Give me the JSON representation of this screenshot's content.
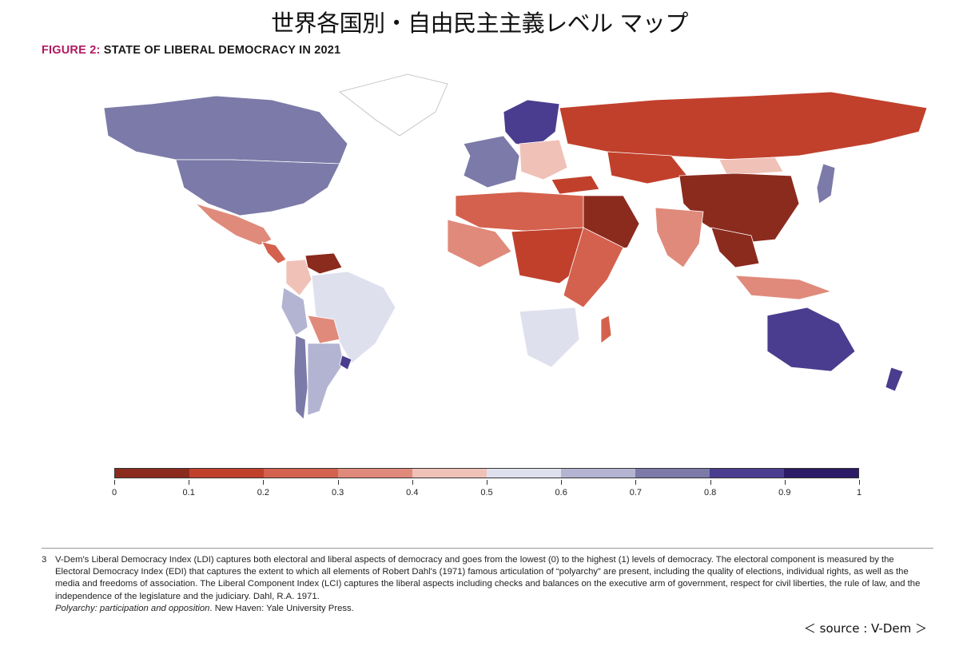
{
  "title_jp": "世界各国別・自由民主主義レベル マップ",
  "figure": {
    "label": "FIGURE 2:",
    "title": "STATE OF LIBERAL DEMOCRACY IN 2021"
  },
  "map": {
    "indicator": "Liberal Democracy Index (LDI)",
    "year": "2021",
    "no_data_color": "#ffffff",
    "regions_colored": [
      {
        "region": "Canada",
        "bin": 7
      },
      {
        "region": "United States",
        "bin": 7
      },
      {
        "region": "Mexico",
        "bin": 3
      },
      {
        "region": "Central America",
        "bin": 2
      },
      {
        "region": "Venezuela",
        "bin": 0
      },
      {
        "region": "Colombia",
        "bin": 4
      },
      {
        "region": "Peru",
        "bin": 6
      },
      {
        "region": "Brazil",
        "bin": 5
      },
      {
        "region": "Bolivia",
        "bin": 3
      },
      {
        "region": "Chile",
        "bin": 7
      },
      {
        "region": "Argentina",
        "bin": 6
      },
      {
        "region": "Uruguay",
        "bin": 8
      },
      {
        "region": "Scandinavia",
        "bin": 8
      },
      {
        "region": "Western Europe",
        "bin": 7
      },
      {
        "region": "Eastern Europe",
        "bin": 4
      },
      {
        "region": "Russia",
        "bin": 1
      },
      {
        "region": "Turkey",
        "bin": 1
      },
      {
        "region": "Middle East",
        "bin": 0
      },
      {
        "region": "North Africa",
        "bin": 2
      },
      {
        "region": "West Africa",
        "bin": 3
      },
      {
        "region": "Central Africa",
        "bin": 1
      },
      {
        "region": "East Africa",
        "bin": 2
      },
      {
        "region": "Southern Africa",
        "bin": 5
      },
      {
        "region": "Madagascar",
        "bin": 2
      },
      {
        "region": "Kazakhstan",
        "bin": 1
      },
      {
        "region": "Mongolia",
        "bin": 4
      },
      {
        "region": "China",
        "bin": 0
      },
      {
        "region": "India",
        "bin": 3
      },
      {
        "region": "Southeast Asia",
        "bin": 0
      },
      {
        "region": "Indonesia",
        "bin": 3
      },
      {
        "region": "Japan",
        "bin": 7
      },
      {
        "region": "Australia",
        "bin": 8
      },
      {
        "region": "New Zealand",
        "bin": 8
      }
    ]
  },
  "legend": {
    "colors": [
      "#8b2b1e",
      "#c1402c",
      "#d4614d",
      "#e08a7b",
      "#f0c1b7",
      "#dfe0ee",
      "#b3b4d2",
      "#7b7aa8",
      "#4a3d8f",
      "#2b1a66"
    ],
    "tick_labels": [
      "0",
      "0.1",
      "0.2",
      "0.3",
      "0.4",
      "0.5",
      "0.6",
      "0.7",
      "0.8",
      "0.9",
      "1"
    ]
  },
  "footnote": {
    "number": "3",
    "text": "V-Dem's Liberal Democracy Index (LDI) captures both electoral and liberal aspects of democracy and goes from the lowest (0) to the highest (1) levels of democracy. The electoral component is measured by the Electoral Democracy Index (EDI) that captures the extent to which all elements of Robert Dahl's (1971) famous articulation of “polyarchy” are present, including the quality of elections, individual rights, as well as the media and freedoms of association. The Liberal Component Index (LCI) captures the liberal aspects including checks and balances on the executive arm of government, respect for civil liberties, the rule of law, and the independence of the legislature and the judiciary. Dahl, R.A. 1971.",
    "citation_italic": "Polyarchy: participation and opposition",
    "citation_rest": ". New Haven: Yale University Press."
  },
  "source": "＜ source : V-Dem ＞"
}
